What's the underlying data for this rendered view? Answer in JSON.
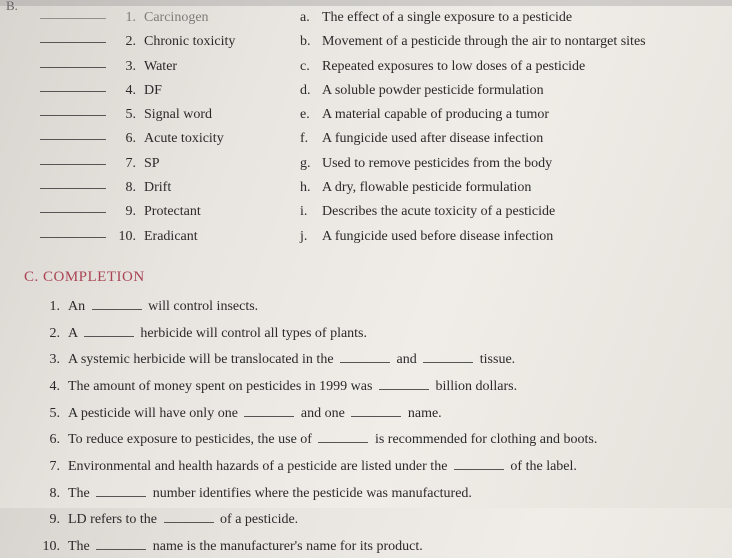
{
  "partial": {
    "b_label": "B.",
    "row1_num": "1.",
    "row1_term": "Carcinogen"
  },
  "matching": {
    "left": [
      {
        "num": "2.",
        "term": "Chronic toxicity"
      },
      {
        "num": "3.",
        "term": "Water"
      },
      {
        "num": "4.",
        "term": "DF"
      },
      {
        "num": "5.",
        "term": "Signal word"
      },
      {
        "num": "6.",
        "term": "Acute toxicity"
      },
      {
        "num": "7.",
        "term": "SP"
      },
      {
        "num": "8.",
        "term": "Drift"
      },
      {
        "num": "9.",
        "term": "Protectant"
      },
      {
        "num": "10.",
        "term": "Eradicant"
      }
    ],
    "right": [
      {
        "letter": "a.",
        "def": "The effect of a single exposure to a pesticide"
      },
      {
        "letter": "b.",
        "def": "Movement of a pesticide through the air to nontarget sites"
      },
      {
        "letter": "c.",
        "def": "Repeated exposures to low doses of a pesticide"
      },
      {
        "letter": "d.",
        "def": "A soluble powder pesticide formulation"
      },
      {
        "letter": "e.",
        "def": "A material capable of producing a tumor"
      },
      {
        "letter": "f.",
        "def": "A fungicide used after disease infection"
      },
      {
        "letter": "g.",
        "def": "Used to remove pesticides from the body"
      },
      {
        "letter": "h.",
        "def": "A dry, flowable pesticide formulation"
      },
      {
        "letter": "i.",
        "def": "Describes the acute toxicity of a pesticide"
      },
      {
        "letter": "j.",
        "def": "A fungicide used before disease infection"
      }
    ]
  },
  "section_c": {
    "heading": "C. COMPLETION",
    "items": [
      {
        "num": "1.",
        "pre": "An ",
        "mid": " will control insects.",
        "blanks": 1
      },
      {
        "num": "2.",
        "pre": "A ",
        "mid": " herbicide will control all types of plants.",
        "blanks": 1
      },
      {
        "num": "3.",
        "pre": "A systemic herbicide will be translocated in the ",
        "mid": " and ",
        "post": " tissue.",
        "blanks": 2
      },
      {
        "num": "4.",
        "pre": "The amount of money spent on pesticides in 1999 was ",
        "mid": " billion dollars.",
        "blanks": 1
      },
      {
        "num": "5.",
        "pre": "A pesticide will have only one ",
        "mid": " and one ",
        "post": " name.",
        "blanks": 2
      },
      {
        "num": "6.",
        "pre": "To reduce exposure to pesticides, the use of ",
        "mid": " is recommended for clothing and boots.",
        "blanks": 1
      },
      {
        "num": "7.",
        "pre": "Environmental and health hazards of a pesticide are listed under the ",
        "mid": " of the label.",
        "blanks": 1
      },
      {
        "num": "8.",
        "pre": "The ",
        "mid": " number identifies where the pesticide was manufactured.",
        "blanks": 1
      },
      {
        "num": "9.",
        "pre": "LD refers to the ",
        "mid": " of a pesticide.",
        "blanks": 1
      },
      {
        "num": "10.",
        "pre": "The ",
        "mid": " name is the manufacturer's name for its product.",
        "blanks": 1
      }
    ]
  }
}
